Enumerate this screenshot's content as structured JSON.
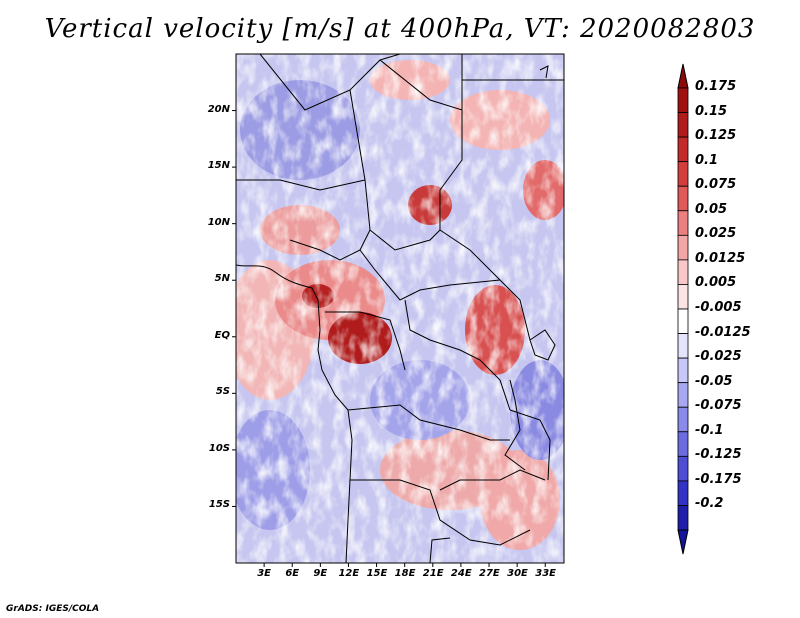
{
  "title": "Vertical velocity [m/s] at 400hPa, VT: 2020082803",
  "credit": "GrADS: IGES/COLA",
  "map": {
    "lon_range": [
      0,
      35
    ],
    "lat_range": [
      -20,
      25
    ],
    "lat_ticks": [
      {
        "value": 20,
        "label": "20N"
      },
      {
        "value": 15,
        "label": "15N"
      },
      {
        "value": 10,
        "label": "10N"
      },
      {
        "value": 5,
        "label": "5N"
      },
      {
        "value": 0,
        "label": "EQ"
      },
      {
        "value": -5,
        "label": "5S"
      },
      {
        "value": -10,
        "label": "10S"
      },
      {
        "value": -15,
        "label": "15S"
      }
    ],
    "lon_ticks": [
      {
        "value": 3,
        "label": "3E"
      },
      {
        "value": 6,
        "label": "6E"
      },
      {
        "value": 9,
        "label": "9E"
      },
      {
        "value": 12,
        "label": "12E"
      },
      {
        "value": 15,
        "label": "15E"
      },
      {
        "value": 18,
        "label": "18E"
      },
      {
        "value": 21,
        "label": "21E"
      },
      {
        "value": 24,
        "label": "24E"
      },
      {
        "value": 27,
        "label": "27E"
      },
      {
        "value": 30,
        "label": "30E"
      },
      {
        "value": 33,
        "label": "33E"
      }
    ]
  },
  "colorbar": {
    "levels": [
      {
        "label": "0.175",
        "color": "#a01010"
      },
      {
        "label": "0.15",
        "color": "#b01c1c"
      },
      {
        "label": "0.125",
        "color": "#c42a2a"
      },
      {
        "label": "0.1",
        "color": "#d43d3d"
      },
      {
        "label": "0.075",
        "color": "#e05a5a"
      },
      {
        "label": "0.05",
        "color": "#ec8080"
      },
      {
        "label": "0.025",
        "color": "#f4a6a6"
      },
      {
        "label": "0.0125",
        "color": "#fac8c8"
      },
      {
        "label": "0.005",
        "color": "#fde4e4"
      },
      {
        "label": "-0.005",
        "color": "#ffffff"
      },
      {
        "label": "-0.0125",
        "color": "#e4e4fc"
      },
      {
        "label": "-0.025",
        "color": "#c8c8f8"
      },
      {
        "label": "-0.05",
        "color": "#a8a8f2"
      },
      {
        "label": "-0.075",
        "color": "#8a8aea"
      },
      {
        "label": "-0.1",
        "color": "#6c6ce0"
      },
      {
        "label": "-0.125",
        "color": "#4e4ed4"
      },
      {
        "label": "-0.175",
        "color": "#3232c4"
      },
      {
        "label": "-0.2",
        "color": "#1e1eaa"
      }
    ],
    "top_color": "#8c0a0a",
    "bottom_color": "#14149a"
  }
}
